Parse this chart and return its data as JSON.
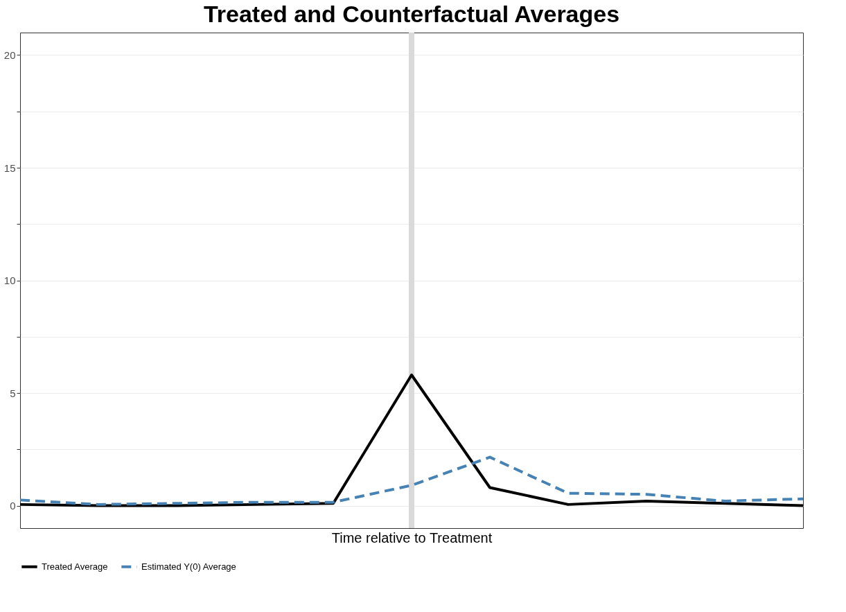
{
  "chart_data": {
    "type": "line",
    "title": "Treated and Counterfactual Averages",
    "xlabel": "Time relative to Treatment",
    "categories": [
      null,
      null,
      null,
      null,
      null,
      null,
      null,
      null,
      null,
      null,
      null
    ],
    "series": [
      {
        "name": "Treated Average",
        "color": "#000000",
        "line_style": "solid",
        "values": [
          0.05,
          0,
          0,
          0.05,
          0.1,
          5.8,
          0.8,
          0.05,
          0.2,
          0.1,
          0
        ]
      },
      {
        "name": "Estimated Y(0) Average",
        "color": "#4682b4",
        "line_style": "dashed",
        "values": [
          0.25,
          0.05,
          0.1,
          0.15,
          0.15,
          0.9,
          2.15,
          0.55,
          0.5,
          0.2,
          0.3
        ]
      }
    ],
    "ylim": [
      -1,
      21
    ],
    "yticks": [
      0,
      {
        "value": 2.5,
        "label": null
      },
      5,
      {
        "value": 7.5,
        "label": null
      },
      10,
      {
        "value": 12.5,
        "label": null
      },
      15,
      {
        "value": 17.5,
        "label": null
      },
      20
    ],
    "grid": "y",
    "legend": "bottom",
    "tick_labels": "y",
    "marker": "none"
  }
}
